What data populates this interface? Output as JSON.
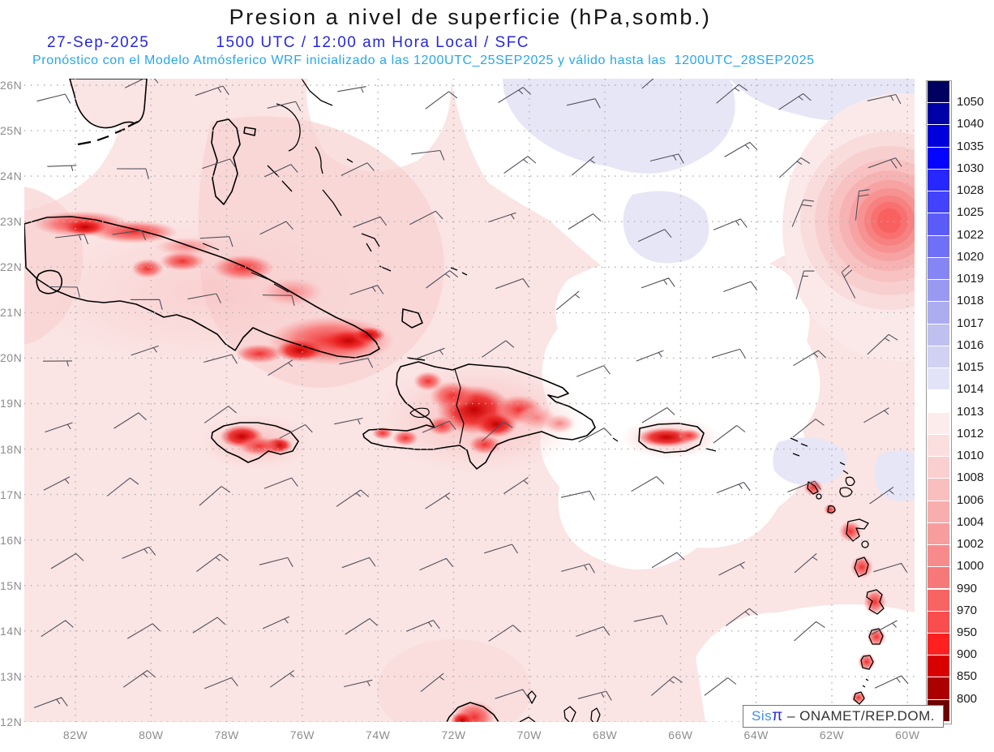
{
  "header": {
    "title": "Presion a nivel de superficie (hPa,somb.)",
    "date": "27-Sep-2025",
    "time_line": "1500 UTC / 12:00 am Hora Local / SFC",
    "forecast_line": "Pronóstico con el Modelo Atmósferico WRF inicializado a las 1200UTC_25SEP2025 y válido hasta las  1200UTC_28SEP2025"
  },
  "axes": {
    "lat_values": [
      26,
      25,
      24,
      23,
      22,
      21,
      20,
      19,
      18,
      17,
      16,
      15,
      14,
      13,
      12
    ],
    "lat_labels": [
      "26N",
      "25N",
      "24N",
      "23N",
      "22N",
      "21N",
      "20N",
      "19N",
      "18N",
      "17N",
      "16N",
      "15N",
      "14N",
      "13N",
      "12N"
    ],
    "lon_values": [
      82,
      80,
      78,
      76,
      74,
      72,
      70,
      68,
      66,
      64,
      62,
      60
    ],
    "lon_labels": [
      "82W",
      "80W",
      "78W",
      "76W",
      "74W",
      "72W",
      "70W",
      "68W",
      "66W",
      "64W",
      "62W",
      "60W"
    ]
  },
  "colorbar": {
    "levels": [
      1050,
      1040,
      1035,
      1030,
      1028,
      1025,
      1022,
      1020,
      1019,
      1018,
      1017,
      1016,
      1015,
      1014,
      1013,
      1012,
      1010,
      1008,
      1006,
      1004,
      1002,
      1000,
      990,
      970,
      950,
      900,
      850,
      800
    ],
    "colors": [
      "#000060",
      "#0000a6",
      "#0000da",
      "#0404ff",
      "#2727ff",
      "#4343fb",
      "#5b5bf8",
      "#7070f6",
      "#8585f4",
      "#9999f2",
      "#acacf0",
      "#bfbff0",
      "#d1d1f3",
      "#e3e3f8",
      "#ffffff",
      "#fdecec",
      "#fbdede",
      "#facfcf",
      "#f9bfbf",
      "#f8aeae",
      "#f89d9d",
      "#f78b8b",
      "#f77878",
      "#f86464",
      "#fa4e4e",
      "#ff2020",
      "#d80000",
      "#aa0000",
      "#700000"
    ]
  },
  "watermark": {
    "prefix": "Sis",
    "pi": "π",
    "label": " – ONAMET/REP.DOM."
  },
  "chart_data": {
    "type": "heatmap",
    "title": "Presion a nivel de superficie (hPa,somb.)",
    "units": "hPa",
    "valid_time": "27-Sep-2025 1500 UTC / 12:00 am Hora Local / SFC",
    "model": "WRF initialized 1200UTC_25SEP2025, valid until 1200UTC_28SEP2025",
    "lon_range_deg_west": [
      83.4,
      59.8
    ],
    "lat_range_deg_north": [
      12,
      26
    ],
    "shading_levels_hpa": [
      1050,
      1040,
      1035,
      1030,
      1028,
      1025,
      1022,
      1020,
      1019,
      1018,
      1017,
      1016,
      1015,
      1014,
      1013,
      1012,
      1010,
      1008,
      1006,
      1004,
      1002,
      1000,
      990,
      970,
      950,
      900,
      850,
      800
    ],
    "field_summary": {
      "background": "Sea-level pressure mostly 1010-1013 hPa over the western Caribbean and Gulf waters (pale pink), 1013-1015 hPa (white to pale blue) over the central Atlantic north and east of the Antilles",
      "features": [
        {
          "name": "tropical-cyclone-closed-low",
          "lat_n": 23.0,
          "lon_w": 60.7,
          "approx_central_pressure_hpa": 1002
        },
        {
          "name": "terrain-reduced-low-pressure",
          "islands": [
            "Cuba",
            "Hispaniola",
            "Jamaica",
            "Puerto Rico",
            "Lesser Antilles",
            "Guajira Peninsula"
          ],
          "approx_values_hpa": "990-1008 over mountainous interiors"
        }
      ]
    },
    "wind_barbs": {
      "prevailing_direction_from": "E-ENE trade winds",
      "typical_speed_kt": 10,
      "range_kt": [
        5,
        20
      ],
      "cyclonic_rotation_around": {
        "lat_n": 23.0,
        "lon_w": 60.7
      }
    }
  }
}
